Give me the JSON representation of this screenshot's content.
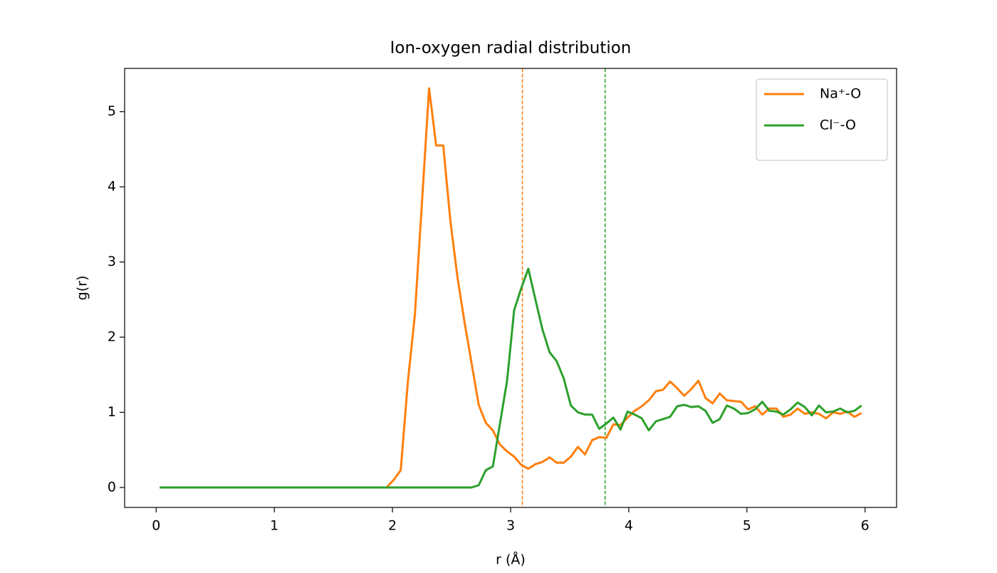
{
  "chart_data": {
    "type": "line",
    "title": "Ion-oxygen radial distribution",
    "xlabel": "r (Å)",
    "ylabel": "g(r)",
    "x": [
      0.03,
      0.09,
      0.15,
      0.21,
      0.27,
      0.33,
      0.39,
      0.45,
      0.51,
      0.57,
      0.63,
      0.69,
      0.75,
      0.81,
      0.87,
      0.93,
      0.99,
      1.05,
      1.11,
      1.17,
      1.23,
      1.29,
      1.35,
      1.41,
      1.47,
      1.53,
      1.59,
      1.65,
      1.71,
      1.77,
      1.83,
      1.89,
      1.95,
      2.01,
      2.07,
      2.13,
      2.19,
      2.25,
      2.31,
      2.37,
      2.43,
      2.49,
      2.55,
      2.61,
      2.67,
      2.73,
      2.79,
      2.85,
      2.91,
      2.97,
      3.03,
      3.09,
      3.15,
      3.21,
      3.27,
      3.33,
      3.39,
      3.45,
      3.51,
      3.57,
      3.63,
      3.69,
      3.75,
      3.81,
      3.87,
      3.93,
      3.99,
      4.05,
      4.11,
      4.17,
      4.23,
      4.29,
      4.35,
      4.41,
      4.47,
      4.53,
      4.59,
      4.65,
      4.71,
      4.77,
      4.83,
      4.89,
      4.95,
      5.01,
      5.07,
      5.13,
      5.19,
      5.25,
      5.31,
      5.37,
      5.43,
      5.49,
      5.55,
      5.61,
      5.67,
      5.73,
      5.79,
      5.85,
      5.91,
      5.97
    ],
    "series": [
      {
        "name": "Na⁺-O",
        "color": "#ff7f0e",
        "values": [
          0,
          0,
          0,
          0,
          0,
          0,
          0,
          0,
          0,
          0,
          0,
          0,
          0,
          0,
          0,
          0,
          0,
          0,
          0,
          0,
          0,
          0,
          0,
          0,
          0,
          0,
          0,
          0,
          0,
          0,
          0,
          0,
          0,
          0.1,
          0.23,
          1.4,
          2.3,
          3.8,
          5.31,
          4.55,
          4.55,
          3.55,
          2.8,
          2.2,
          1.65,
          1.1,
          0.86,
          0.76,
          0.57,
          0.48,
          0.41,
          0.3,
          0.25,
          0.31,
          0.34,
          0.4,
          0.33,
          0.33,
          0.41,
          0.54,
          0.44,
          0.63,
          0.67,
          0.66,
          0.84,
          0.83,
          0.93,
          1.02,
          1.08,
          1.16,
          1.28,
          1.3,
          1.41,
          1.32,
          1.22,
          1.31,
          1.42,
          1.19,
          1.12,
          1.25,
          1.16,
          1.15,
          1.14,
          1.04,
          1.08,
          0.97,
          1.05,
          1.05,
          0.94,
          0.97,
          1.05,
          0.98,
          1.0,
          0.98,
          0.92,
          1.0,
          0.98,
          1.01,
          0.94,
          0.99
        ]
      },
      {
        "name": "Cl⁻-O",
        "color": "#2ca02c",
        "values": [
          0,
          0,
          0,
          0,
          0,
          0,
          0,
          0,
          0,
          0,
          0,
          0,
          0,
          0,
          0,
          0,
          0,
          0,
          0,
          0,
          0,
          0,
          0,
          0,
          0,
          0,
          0,
          0,
          0,
          0,
          0,
          0,
          0,
          0,
          0,
          0,
          0,
          0,
          0,
          0,
          0,
          0,
          0,
          0,
          0,
          0.03,
          0.23,
          0.28,
          0.85,
          1.42,
          2.36,
          2.65,
          2.91,
          2.5,
          2.1,
          1.8,
          1.68,
          1.45,
          1.09,
          1.0,
          0.97,
          0.97,
          0.78,
          0.85,
          0.93,
          0.77,
          1.01,
          0.97,
          0.92,
          0.76,
          0.88,
          0.91,
          0.94,
          1.08,
          1.1,
          1.07,
          1.08,
          1.02,
          0.86,
          0.91,
          1.09,
          1.05,
          0.98,
          0.99,
          1.04,
          1.14,
          1.02,
          1.01,
          0.97,
          1.04,
          1.13,
          1.07,
          0.96,
          1.09,
          1.0,
          1.01,
          1.05,
          1.0,
          1.02,
          1.09
        ]
      }
    ],
    "vlines": [
      {
        "x": 3.1,
        "color": "#ff7f0e"
      },
      {
        "x": 3.8,
        "color": "#2ca02c"
      }
    ],
    "xlim": [
      -0.267,
      6.267
    ],
    "ylim": [
      -0.2655,
      5.5755
    ],
    "xticks": [
      0,
      1,
      2,
      3,
      4,
      5,
      6
    ],
    "yticks": [
      0,
      1,
      2,
      3,
      4,
      5
    ],
    "legend": "upper right"
  }
}
